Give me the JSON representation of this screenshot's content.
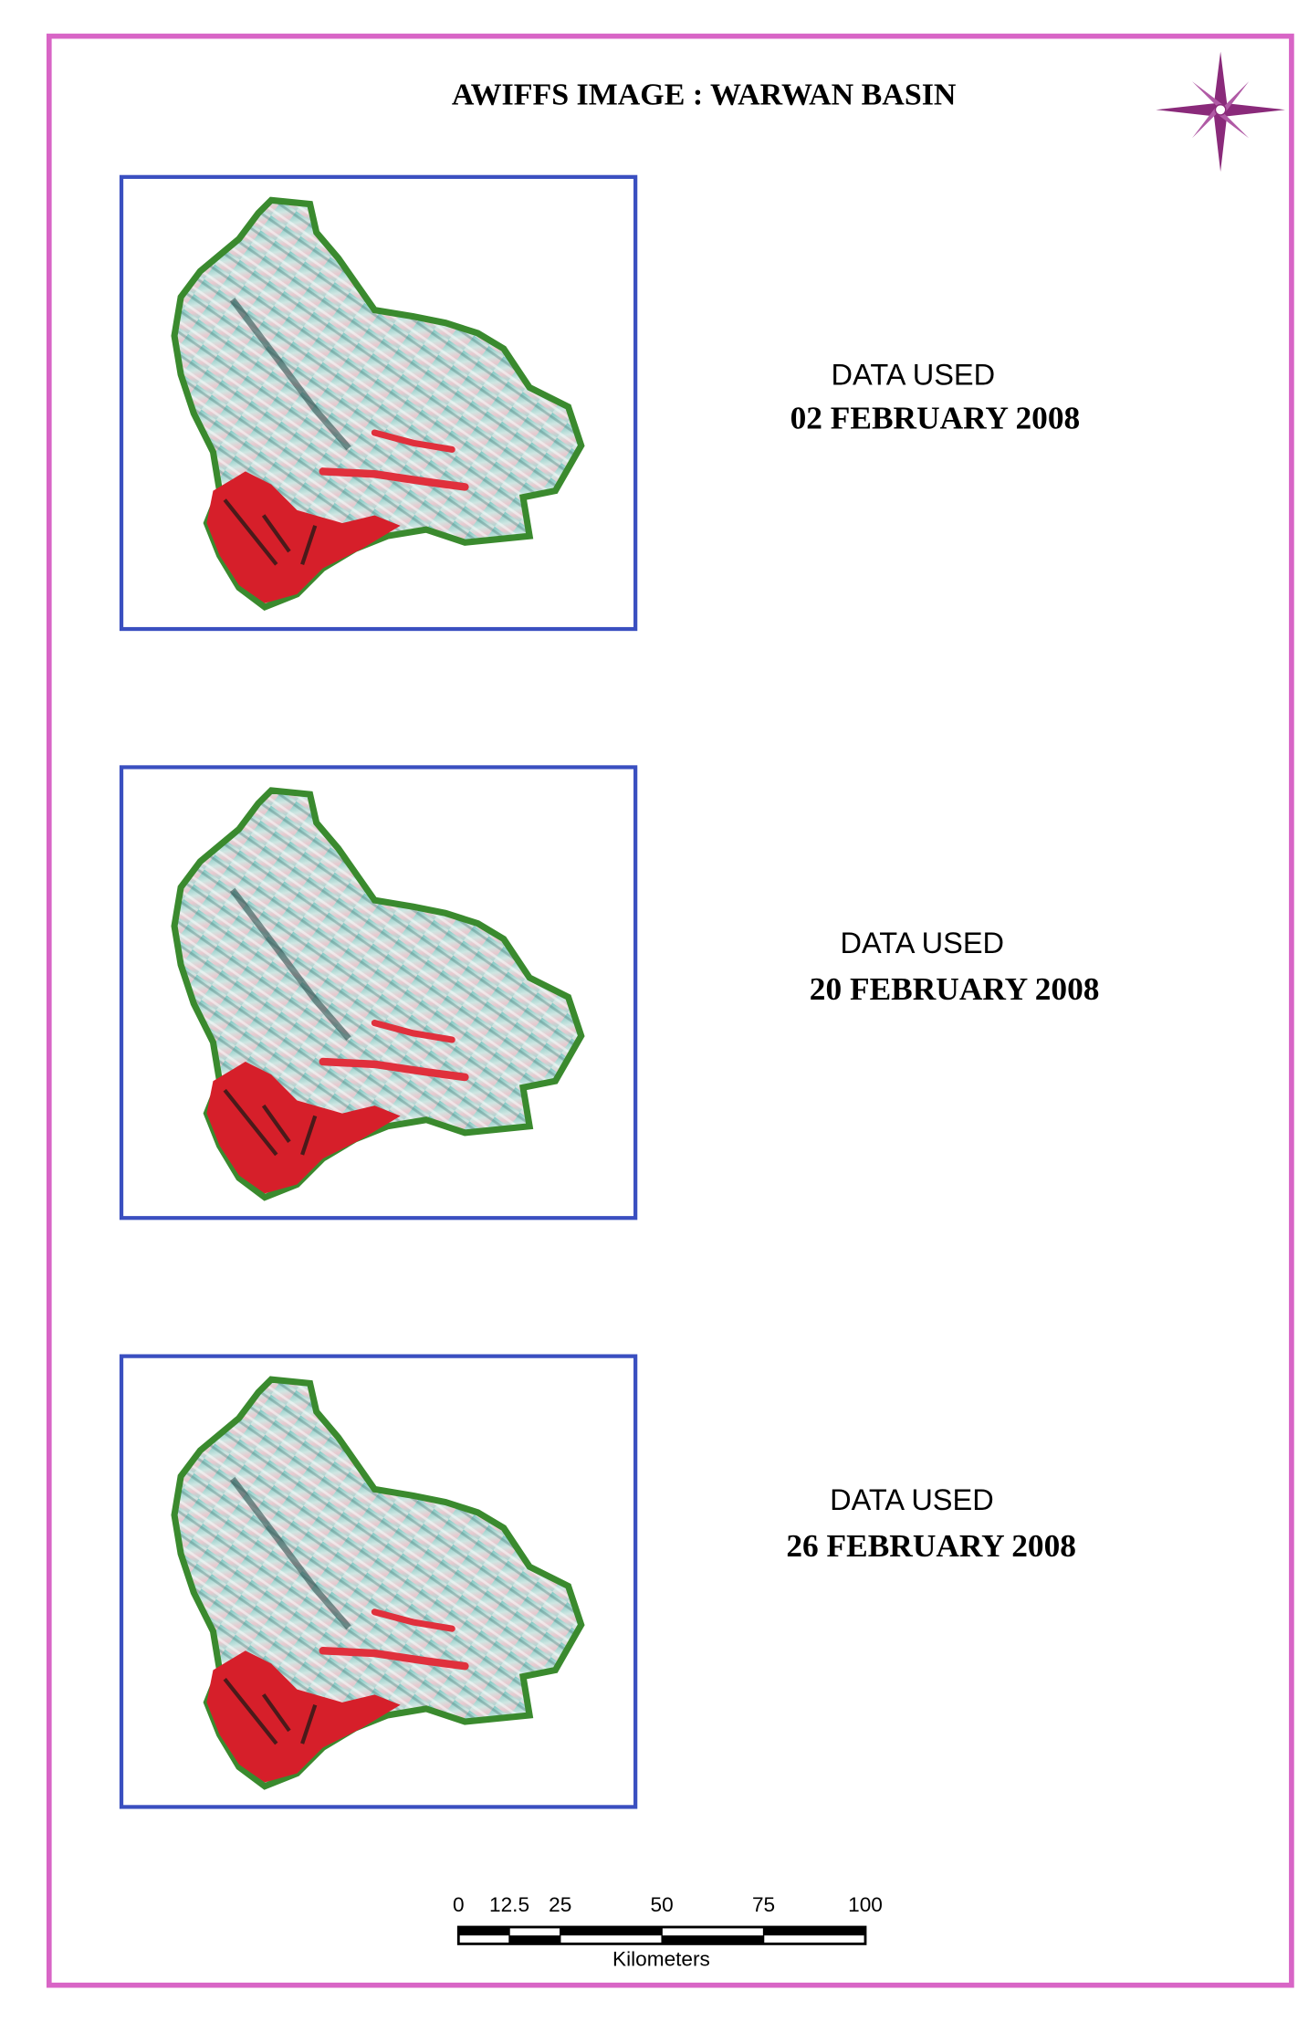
{
  "title": "AWIFFS IMAGE : WARWAN BASIN",
  "panels": [
    {
      "label": "DATA USED",
      "date": "02 FEBRUARY 2008"
    },
    {
      "label": "DATA USED",
      "date": "20 FEBRUARY 2008"
    },
    {
      "label": "DATA USED",
      "date": "26 FEBRUARY 2008"
    }
  ],
  "scale_bar": {
    "ticks": [
      0,
      12.5,
      25,
      50,
      75,
      100
    ],
    "unit": "Kilometers"
  }
}
